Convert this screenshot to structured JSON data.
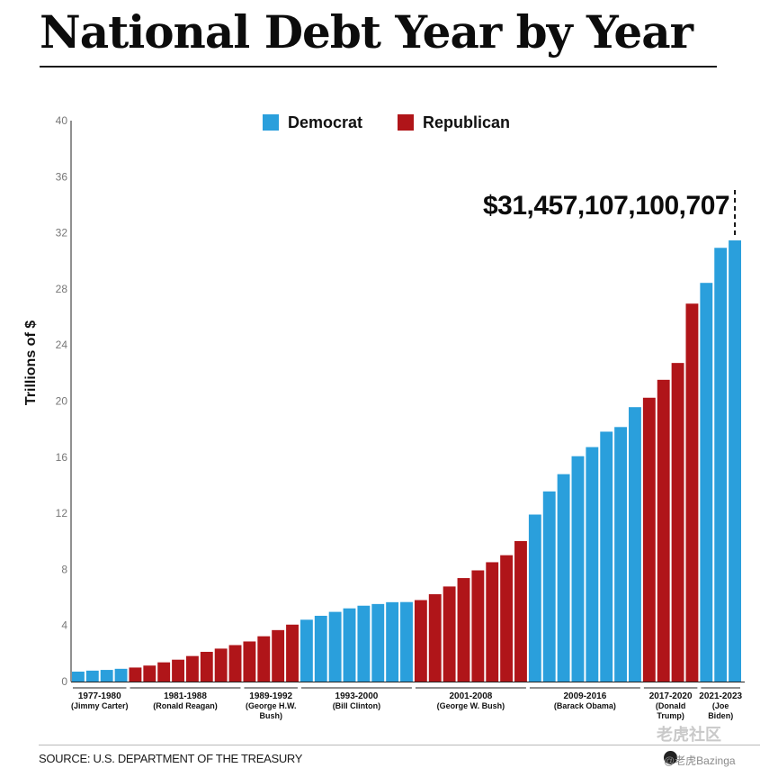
{
  "title": "National Debt Year by Year",
  "source": "SOURCE: U.S. DEPARTMENT OF THE TREASURY",
  "watermark": {
    "text1": "老虎社区",
    "text2": "@老虎Bazinga"
  },
  "colors": {
    "Democrat": "#2a9fdc",
    "Republican": "#b01519"
  },
  "chart_data": {
    "type": "bar",
    "ylabel": "Trillions of $",
    "xlabel": "",
    "ylim": [
      0,
      40
    ],
    "yticks": [
      0,
      4,
      8,
      12,
      16,
      20,
      24,
      28,
      32,
      36,
      40
    ],
    "grid": false,
    "legend": {
      "position": "top-center",
      "entries": [
        "Democrat",
        "Republican"
      ]
    },
    "annotation": {
      "text": "$31,457,107,100,707",
      "target_bar_index": 46
    },
    "groups": [
      {
        "label": [
          "1977-1980",
          "(Jimmy Carter)"
        ],
        "party": "Democrat",
        "values": [
          0.71,
          0.78,
          0.83,
          0.91
        ]
      },
      {
        "label": [
          "1981-1988",
          "(Ronald Reagan)"
        ],
        "party": "Republican",
        "values": [
          1.0,
          1.14,
          1.37,
          1.56,
          1.82,
          2.12,
          2.35,
          2.6
        ]
      },
      {
        "label": [
          "1989-1992",
          "(George H.W.",
          "Bush)"
        ],
        "party": "Republican",
        "values": [
          2.86,
          3.23,
          3.67,
          4.06
        ]
      },
      {
        "label": [
          "1993-2000",
          "(Bill Clinton)"
        ],
        "party": "Democrat",
        "values": [
          4.41,
          4.69,
          4.97,
          5.22,
          5.41,
          5.53,
          5.66,
          5.67
        ]
      },
      {
        "label": [
          "2001-2008",
          "(George W. Bush)"
        ],
        "party": "Republican",
        "values": [
          5.81,
          6.23,
          6.78,
          7.38,
          7.93,
          8.51,
          9.01,
          10.02
        ]
      },
      {
        "label": [
          "2009-2016",
          "(Barack Obama)"
        ],
        "party": "Democrat",
        "values": [
          11.91,
          13.56,
          14.79,
          16.07,
          16.72,
          17.82,
          18.15,
          19.57
        ]
      },
      {
        "label": [
          "2017-2020",
          "(Donald",
          "Trump)"
        ],
        "party": "Republican",
        "values": [
          20.24,
          21.52,
          22.72,
          26.95
        ]
      },
      {
        "label": [
          "2021-2023",
          "(Joe",
          "Biden)"
        ],
        "party": "Democrat",
        "values": [
          28.43,
          30.93,
          31.46
        ]
      }
    ]
  }
}
